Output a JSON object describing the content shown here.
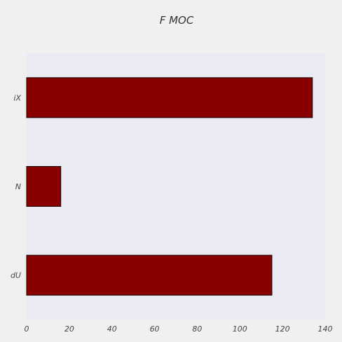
{
  "chart_data": {
    "type": "bar",
    "orientation": "horizontal",
    "title": "F   MOC",
    "categories": [
      "iX",
      "N",
      "dU"
    ],
    "values": [
      134,
      16,
      115
    ],
    "xlabel": "",
    "ylabel": "",
    "xlim": [
      0,
      140
    ],
    "x_ticks": [
      0,
      20,
      40,
      60,
      80,
      100,
      120,
      140
    ],
    "x_tick_labels": [
      "0",
      "20",
      "40",
      "60",
      "80",
      "100",
      "120",
      "140"
    ],
    "grid": false,
    "legend": "none",
    "colors": {
      "bar_fill": "#880000",
      "bar_edge": "#1a0000",
      "plot_background": "#eaeaf2",
      "page_background": "#f0f0f0"
    }
  }
}
